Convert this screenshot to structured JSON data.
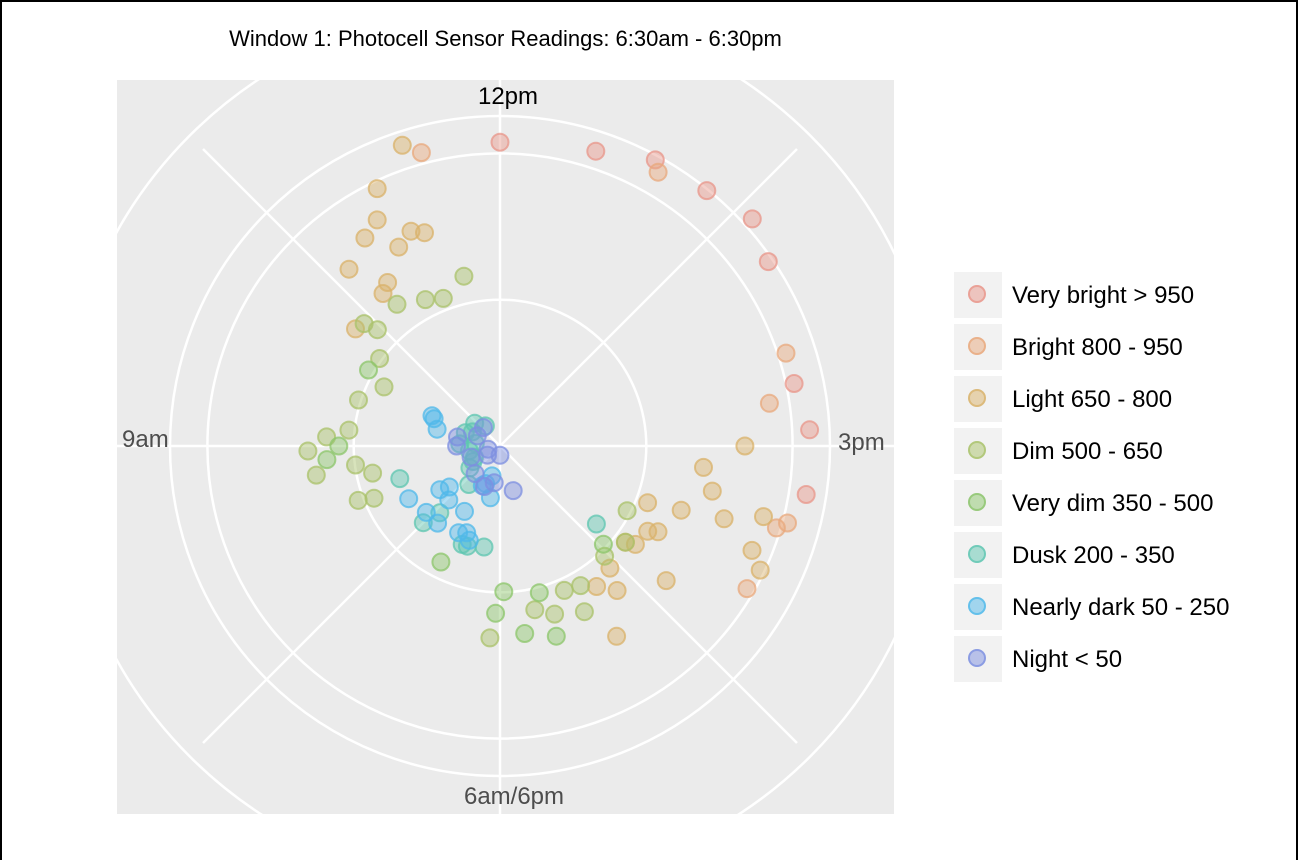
{
  "chart_data": {
    "type": "scatter",
    "polar": true,
    "title": "Window 1: Photocell Sensor Readings: 6:30am - 6:30pm",
    "angle_labels": [
      "12pm",
      "3pm",
      "6am/6pm",
      "9am"
    ],
    "radius_range": [
      0,
      1100
    ],
    "grid": true,
    "legend_position": "right",
    "categories": [
      {
        "key": "vbright",
        "label": "Very bright > 950",
        "color": "#e8968a"
      },
      {
        "key": "bright",
        "label": "Bright 800 - 950",
        "color": "#e8a87c"
      },
      {
        "key": "light",
        "label": "Light 650 - 800",
        "color": "#d9b26a"
      },
      {
        "key": "dim",
        "label": "Dim 500 - 650",
        "color": "#a9c26a"
      },
      {
        "key": "vdim",
        "label": "Very dim 350 - 500",
        "color": "#8cc56b"
      },
      {
        "key": "dusk",
        "label": "Dusk 200 - 350",
        "color": "#5ec6b0"
      },
      {
        "key": "ndark",
        "label": "Nearly dark 50 - 250",
        "color": "#4fb8ea"
      },
      {
        "key": "night",
        "label": "Night < 50",
        "color": "#7d8fe0"
      }
    ],
    "series": [
      {
        "key": "vbright",
        "points": [
          [
            12.0,
            980
          ],
          [
            12.6,
            1000
          ],
          [
            12.95,
            1050
          ],
          [
            13.3,
            1060
          ],
          [
            13.6,
            1095
          ],
          [
            13.85,
            1050
          ],
          [
            14.6,
            970
          ],
          [
            14.9,
            1000
          ],
          [
            15.3,
            1000
          ]
        ]
      },
      {
        "key": "bright",
        "points": [
          [
            11.5,
            980
          ],
          [
            13.0,
            1020
          ],
          [
            14.4,
            970
          ],
          [
            14.7,
            880
          ],
          [
            15.5,
            960
          ],
          [
            15.55,
            930
          ],
          [
            16.0,
            920
          ]
        ]
      },
      {
        "key": "light",
        "points": [
          [
            11.4,
            1020
          ],
          [
            11.15,
            920
          ],
          [
            10.65,
            750
          ],
          [
            10.9,
            800
          ],
          [
            11.05,
            830
          ],
          [
            11.1,
            720
          ],
          [
            11.35,
            730
          ],
          [
            11.25,
            750
          ],
          [
            10.75,
            620
          ],
          [
            10.85,
            640
          ],
          [
            10.3,
            600
          ],
          [
            15.5,
            880
          ],
          [
            15.6,
            760
          ],
          [
            15.0,
            790
          ],
          [
            15.2,
            660
          ],
          [
            15.4,
            700
          ],
          [
            15.65,
            620
          ],
          [
            15.95,
            580
          ],
          [
            16.25,
            510
          ],
          [
            16.3,
            690
          ],
          [
            16.6,
            530
          ],
          [
            16.85,
            550
          ],
          [
            15.7,
            510
          ],
          [
            16.0,
            550
          ],
          [
            16.2,
            540
          ],
          [
            16.7,
            600
          ],
          [
            16.95,
            720
          ],
          [
            15.85,
            930
          ],
          [
            15.75,
            880
          ]
        ]
      },
      {
        "key": "dim",
        "points": [
          [
            10.8,
            565
          ],
          [
            10.4,
            590
          ],
          [
            10.45,
            545
          ],
          [
            10.2,
            480
          ],
          [
            9.9,
            420
          ],
          [
            9.6,
            480
          ],
          [
            9.1,
            560
          ],
          [
            8.6,
            420
          ],
          [
            8.7,
            600
          ],
          [
            8.95,
            620
          ],
          [
            8.3,
            490
          ],
          [
            8.25,
            440
          ],
          [
            8.75,
            470
          ],
          [
            9.2,
            490
          ],
          [
            11.1,
            530
          ],
          [
            11.3,
            510
          ],
          [
            11.6,
            560
          ],
          [
            15.9,
            460
          ],
          [
            16.25,
            510
          ],
          [
            16.55,
            490
          ],
          [
            17.0,
            520
          ],
          [
            17.2,
            510
          ],
          [
            17.4,
            570
          ],
          [
            17.6,
            540
          ],
          [
            17.1,
            600
          ],
          [
            18.1,
            620
          ]
        ]
      },
      {
        "key": "vdim",
        "points": [
          [
            10.0,
            490
          ],
          [
            9.0,
            520
          ],
          [
            8.85,
            560
          ],
          [
            17.5,
            490
          ],
          [
            17.45,
            640
          ],
          [
            17.75,
            610
          ],
          [
            17.95,
            470
          ],
          [
            18.05,
            540
          ],
          [
            18.9,
            420
          ],
          [
            16.45,
            460
          ]
        ]
      },
      {
        "key": "dusk",
        "points": [
          [
            16.3,
            400
          ],
          [
            8.4,
            340
          ],
          [
            18.7,
            340
          ],
          [
            19.4,
            290
          ],
          [
            19.5,
            350
          ],
          [
            18.6,
            340
          ],
          [
            18.3,
            330
          ],
          [
            21.1,
            130
          ],
          [
            21.9,
            100
          ],
          [
            21.7,
            120
          ],
          [
            22.4,
            110
          ],
          [
            20.7,
            100
          ],
          [
            22.8,
            80
          ],
          [
            21.2,
            80
          ],
          [
            19.8,
            120
          ],
          [
            20.2,
            90
          ],
          [
            20.0,
            100
          ],
          [
            19.3,
            160
          ]
        ]
      },
      {
        "key": "ndark",
        "points": [
          [
            9.8,
            240
          ],
          [
            9.5,
            210
          ],
          [
            9.75,
            230
          ],
          [
            8.0,
            340
          ],
          [
            7.6,
            320
          ],
          [
            7.3,
            320
          ],
          [
            6.85,
            310
          ],
          [
            6.7,
            300
          ],
          [
            6.6,
            320
          ],
          [
            6.95,
            240
          ],
          [
            6.5,
            100
          ],
          [
            6.7,
            130
          ],
          [
            6.8,
            140
          ],
          [
            7.7,
            210
          ],
          [
            6.35,
            170
          ],
          [
            7.8,
            240
          ],
          [
            7.45,
            240
          ]
        ]
      },
      {
        "key": "night",
        "points": [
          [
            18.7,
            140
          ],
          [
            21.4,
            140
          ],
          [
            22.6,
            80
          ],
          [
            21.8,
            80
          ],
          [
            20.3,
            100
          ],
          [
            21.0,
            140
          ],
          [
            5.45,
            150
          ],
          [
            6.3,
            120
          ],
          [
            7.4,
            120
          ],
          [
            6.0,
            30
          ],
          [
            19.8,
            50
          ],
          [
            20.5,
            40
          ]
        ]
      }
    ]
  }
}
